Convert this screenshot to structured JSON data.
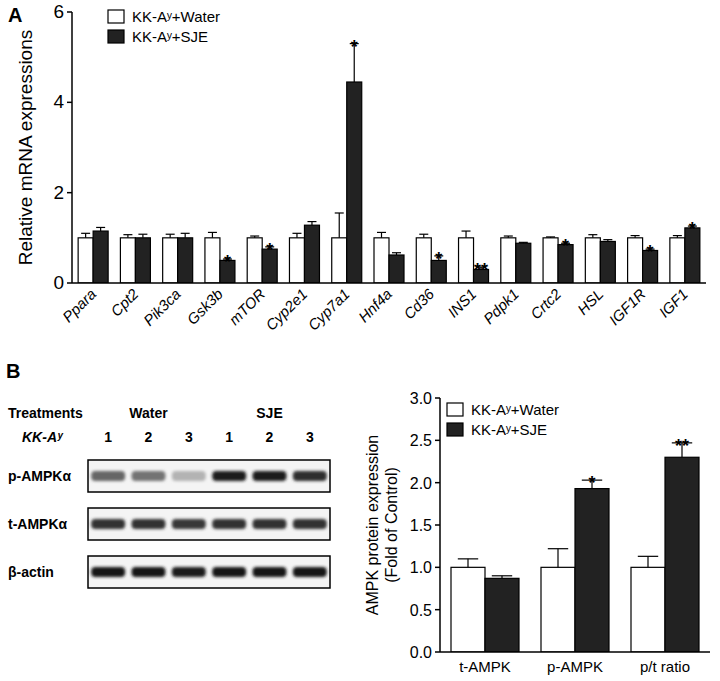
{
  "chart_data": [
    {
      "type": "bar",
      "title": "A",
      "y_label": "Relative mRNA expressions",
      "categories": [
        "Ppara",
        "Cpt2",
        "Pik3ca",
        "Gsk3b",
        "mTOR",
        "Cyp2e1",
        "Cyp7a1",
        "Hnf4a",
        "Cd36",
        "INS1",
        "Pdpk1",
        "Crtc2",
        "HSL",
        "IGF1R",
        "IGF1"
      ],
      "series": [
        {
          "name": "KK-Aʸ+Water",
          "color": "#ffffff",
          "values": [
            1.0,
            1.0,
            1.0,
            1.0,
            1.0,
            1.0,
            1.0,
            1.0,
            1.0,
            1.0,
            1.0,
            1.0,
            1.0,
            1.0,
            1.0
          ],
          "errors": [
            0.1,
            0.07,
            0.08,
            0.12,
            0.04,
            0.1,
            0.55,
            0.12,
            0.08,
            0.15,
            0.04,
            0.02,
            0.07,
            0.05,
            0.05
          ],
          "significance": [
            null,
            null,
            null,
            null,
            null,
            null,
            null,
            null,
            null,
            null,
            null,
            null,
            null,
            null,
            null
          ]
        },
        {
          "name": "KK-Aʸ+SJE",
          "color": "#222222",
          "values": [
            1.15,
            1.0,
            1.0,
            0.5,
            0.75,
            1.28,
            4.45,
            0.62,
            0.5,
            0.3,
            0.88,
            0.85,
            0.92,
            0.72,
            1.22
          ],
          "errors": [
            0.08,
            0.08,
            0.1,
            0.03,
            0.05,
            0.08,
            0.85,
            0.05,
            0.1,
            0.05,
            0.02,
            0.03,
            0.04,
            0.03,
            0.04
          ],
          "significance": [
            null,
            null,
            null,
            "*",
            "*",
            null,
            "*",
            null,
            "*",
            "**",
            null,
            "*",
            null,
            "*",
            "*"
          ]
        }
      ],
      "ylim": [
        0,
        6
      ],
      "yticks": [
        0,
        2,
        4,
        6
      ],
      "legend": "upper-left"
    },
    {
      "type": "bar",
      "title": "B",
      "y_label": [
        "AMPK protein expression",
        "(Fold of Control)"
      ],
      "categories": [
        "t-AMPK",
        "p-AMPK",
        "p/t ratio"
      ],
      "series": [
        {
          "name": "KK-Aʸ+Water",
          "color": "#ffffff",
          "values": [
            1.0,
            1.0,
            1.0
          ],
          "errors": [
            0.1,
            0.22,
            0.13
          ],
          "significance": [
            null,
            null,
            null
          ]
        },
        {
          "name": "KK-Aʸ+SJE",
          "color": "#222222",
          "values": [
            0.87,
            1.93,
            2.3
          ],
          "errors": [
            0.03,
            0.1,
            0.17
          ],
          "significance": [
            null,
            "*",
            "**"
          ]
        }
      ],
      "ylim": [
        0,
        3
      ],
      "yticks": [
        {
          "value": 0,
          "label": "0.0"
        },
        {
          "value": 0.5,
          "label": "0.5"
        },
        {
          "value": 1,
          "label": "1.0"
        },
        {
          "value": 1.5,
          "label": "1.5"
        },
        {
          "value": 2,
          "label": "2.0"
        },
        {
          "value": 2.5,
          "label": "2.5"
        },
        {
          "value": 3,
          "label": "3.0"
        }
      ],
      "legend": "upper-left"
    }
  ],
  "blot": {
    "header": "Treatments",
    "row_label": "KK-Aʸ",
    "groups": [
      {
        "name": "Water",
        "lanes": [
          "1",
          "2",
          "3"
        ]
      },
      {
        "name": "SJE",
        "lanes": [
          "1",
          "2",
          "3"
        ]
      }
    ],
    "bands": [
      {
        "name": "p-AMPKα",
        "intensity": [
          0.6,
          0.55,
          0.3,
          0.88,
          0.88,
          0.82
        ]
      },
      {
        "name": "t-AMPKα",
        "intensity": [
          0.8,
          0.8,
          0.78,
          0.8,
          0.8,
          0.8
        ]
      },
      {
        "name": "β-actin",
        "intensity": [
          0.9,
          0.9,
          0.88,
          0.9,
          0.9,
          0.9
        ]
      }
    ]
  }
}
